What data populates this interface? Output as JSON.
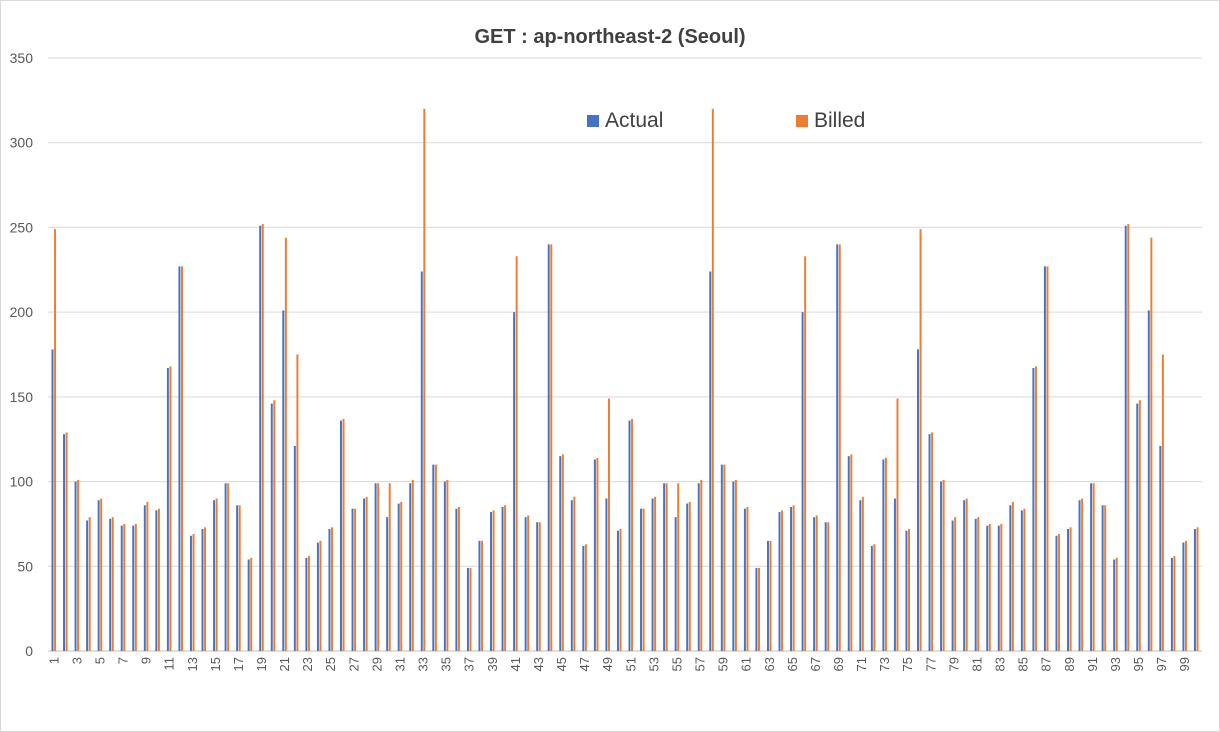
{
  "chart_data": {
    "type": "bar",
    "title": "GET : ap-northeast-2 (Seoul)",
    "xlabel": "",
    "ylabel": "",
    "ylim": [
      0,
      350
    ],
    "yticks": [
      0,
      50,
      100,
      150,
      200,
      250,
      300,
      350
    ],
    "grid": true,
    "legend_position": "top-center",
    "categories": [
      1,
      2,
      3,
      4,
      5,
      6,
      7,
      8,
      9,
      10,
      11,
      12,
      13,
      14,
      15,
      16,
      17,
      18,
      19,
      20,
      21,
      22,
      23,
      24,
      25,
      26,
      27,
      28,
      29,
      30,
      31,
      32,
      33,
      34,
      35,
      36,
      37,
      38,
      39,
      40,
      41,
      42,
      43,
      44,
      45,
      46,
      47,
      48,
      49,
      50,
      51,
      52,
      53,
      54,
      55,
      56,
      57,
      58,
      59,
      60,
      61,
      62,
      63,
      64,
      65,
      66,
      67,
      68,
      69,
      70,
      71,
      72,
      73,
      74,
      75,
      76,
      77,
      78,
      79,
      80,
      81,
      82,
      83,
      84,
      85,
      86,
      87,
      88,
      89,
      90,
      91,
      92,
      93,
      94,
      95,
      96,
      97,
      98,
      99,
      100
    ],
    "series": [
      {
        "name": "Actual",
        "color": "#4472c4",
        "values": [
          178,
          128,
          100,
          77,
          89,
          78,
          74,
          74,
          86,
          83,
          167,
          227,
          68,
          72,
          89,
          99,
          86,
          54,
          251,
          146,
          201,
          121,
          55,
          64,
          72,
          136,
          84,
          90,
          99,
          79,
          87,
          99,
          224,
          110,
          100,
          84,
          49,
          65,
          82,
          85,
          200,
          79,
          76,
          240,
          115,
          89,
          62,
          113,
          90,
          71,
          136,
          84,
          90,
          99,
          79,
          87,
          99,
          224,
          110,
          100,
          84,
          49,
          65,
          82,
          85,
          200,
          79,
          76,
          240,
          115,
          89,
          62,
          113,
          90,
          71,
          178,
          128,
          100,
          77,
          89,
          78,
          74,
          74,
          86,
          83,
          167,
          227,
          68,
          72,
          89,
          99,
          86,
          54,
          251,
          146,
          201,
          121,
          55,
          64,
          72
        ]
      },
      {
        "name": "Billed",
        "color": "#ed7d31",
        "values": [
          249,
          129,
          101,
          79,
          90,
          79,
          75,
          75,
          88,
          84,
          168,
          227,
          69,
          73,
          90,
          99,
          86,
          55,
          252,
          148,
          244,
          175,
          56,
          65,
          73,
          137,
          84,
          91,
          99,
          99,
          88,
          101,
          320,
          110,
          101,
          85,
          49,
          65,
          83,
          86,
          233,
          80,
          76,
          240,
          116,
          91,
          63,
          114,
          149,
          72,
          137,
          84,
          91,
          99,
          99,
          88,
          101,
          320,
          110,
          101,
          85,
          49,
          65,
          83,
          86,
          233,
          80,
          76,
          240,
          116,
          91,
          63,
          114,
          149,
          72,
          249,
          129,
          101,
          79,
          90,
          79,
          75,
          75,
          88,
          84,
          168,
          227,
          69,
          73,
          90,
          99,
          86,
          55,
          252,
          148,
          244,
          175,
          56,
          65,
          73
        ]
      }
    ]
  }
}
